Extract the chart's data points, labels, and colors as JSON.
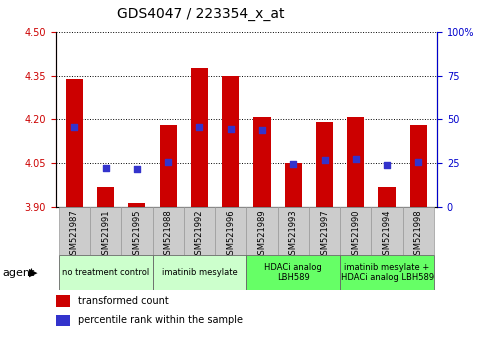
{
  "title": "GDS4047 / 223354_x_at",
  "samples": [
    "GSM521987",
    "GSM521991",
    "GSM521995",
    "GSM521988",
    "GSM521992",
    "GSM521996",
    "GSM521989",
    "GSM521993",
    "GSM521997",
    "GSM521990",
    "GSM521994",
    "GSM521998"
  ],
  "bar_values": [
    4.34,
    3.97,
    3.915,
    4.18,
    4.375,
    4.35,
    4.21,
    4.05,
    4.19,
    4.21,
    3.97,
    4.18
  ],
  "dot_values": [
    4.175,
    4.035,
    4.032,
    4.055,
    4.175,
    4.168,
    4.165,
    4.047,
    4.06,
    4.065,
    4.043,
    4.055
  ],
  "ylim": [
    3.9,
    4.5
  ],
  "yticks": [
    3.9,
    4.05,
    4.2,
    4.35,
    4.5
  ],
  "right_yticks": [
    0,
    25,
    50,
    75,
    100
  ],
  "right_ylim": [
    0,
    100
  ],
  "bar_color": "#cc0000",
  "dot_color": "#3333cc",
  "bar_width": 0.55,
  "group_boundaries": [
    {
      "start": 0,
      "end": 2,
      "label": "no treatment control",
      "color": "#ccffcc"
    },
    {
      "start": 3,
      "end": 5,
      "label": "imatinib mesylate",
      "color": "#ccffcc"
    },
    {
      "start": 6,
      "end": 8,
      "label": "HDACi analog\nLBH589",
      "color": "#66ff66"
    },
    {
      "start": 9,
      "end": 11,
      "label": "imatinib mesylate +\nHDACi analog LBH589",
      "color": "#66ff66"
    }
  ],
  "title_fontsize": 10,
  "tick_fontsize": 7,
  "label_fontsize": 6,
  "group_fontsize": 6,
  "legend_fontsize": 7,
  "agent_fontsize": 8,
  "grid_color": "#000000",
  "left_tick_color": "#cc0000",
  "right_tick_color": "#0000cc",
  "col_bg_color": "#cccccc",
  "col_border_color": "#999999"
}
